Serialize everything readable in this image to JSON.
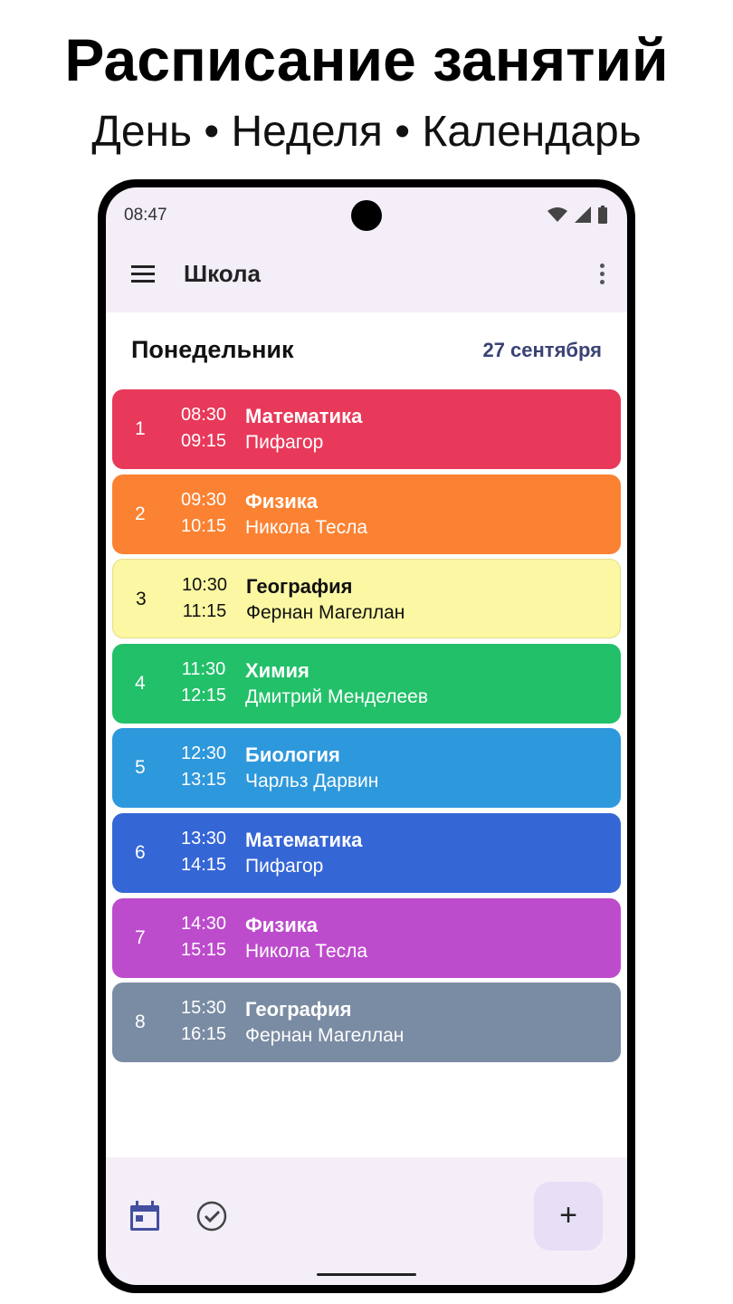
{
  "promo": {
    "title": "Расписание занятий",
    "subtitle": "День • Неделя • Календарь"
  },
  "status": {
    "time": "08:47"
  },
  "appbar": {
    "title": "Школа"
  },
  "day": {
    "name": "Понедельник",
    "date": "27 сентября"
  },
  "lessons": [
    {
      "num": "1",
      "start": "08:30",
      "end": "09:15",
      "subject": "Математика",
      "teacher": "Пифагор",
      "color": "#e8395a",
      "text": "#ffffff"
    },
    {
      "num": "2",
      "start": "09:30",
      "end": "10:15",
      "subject": "Физика",
      "teacher": "Никола Тесла",
      "color": "#fb8232",
      "text": "#ffffff"
    },
    {
      "num": "3",
      "start": "10:30",
      "end": "11:15",
      "subject": "География",
      "teacher": "Фернан Магеллан",
      "color": "#fbf7a2",
      "text": "#111111"
    },
    {
      "num": "4",
      "start": "11:30",
      "end": "12:15",
      "subject": "Химия",
      "teacher": "Дмитрий Менделеев",
      "color": "#22c069",
      "text": "#ffffff"
    },
    {
      "num": "5",
      "start": "12:30",
      "end": "13:15",
      "subject": "Биология",
      "teacher": "Чарльз Дарвин",
      "color": "#2e98dc",
      "text": "#ffffff"
    },
    {
      "num": "6",
      "start": "13:30",
      "end": "14:15",
      "subject": "Математика",
      "teacher": "Пифагор",
      "color": "#3566d6",
      "text": "#ffffff"
    },
    {
      "num": "7",
      "start": "14:30",
      "end": "15:15",
      "subject": "Физика",
      "teacher": "Никола Тесла",
      "color": "#bd4ccc",
      "text": "#ffffff"
    },
    {
      "num": "8",
      "start": "15:30",
      "end": "16:15",
      "subject": "География",
      "teacher": "Фернан Магеллан",
      "color": "#7a8ca3",
      "text": "#ffffff"
    }
  ],
  "bottom": {
    "fab": "+",
    "icons": [
      "calendar-icon",
      "check-circle-icon"
    ]
  }
}
